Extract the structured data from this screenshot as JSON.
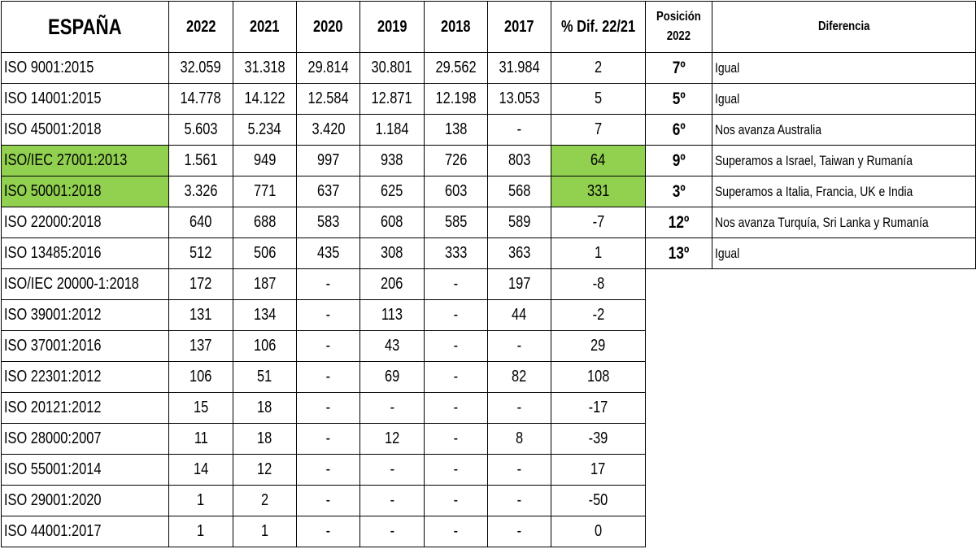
{
  "table": {
    "header": [
      "ESPAÑA",
      "2022",
      "2021",
      "2020",
      "2019",
      "2018",
      "2017",
      "% Dif. 22/21",
      "Posición 2022",
      "Diferencia"
    ],
    "rows": [
      [
        "ISO 9001:2015",
        "32.059",
        "31.318",
        "29.814",
        "30.801",
        "29.562",
        "31.984",
        "2",
        "7º",
        "Igual"
      ],
      [
        "ISO 14001:2015",
        "14.778",
        "14.122",
        "12.584",
        "12.871",
        "12.198",
        "13.053",
        "5",
        "5º",
        "Igual"
      ],
      [
        "ISO 45001:2018",
        "5.603",
        "5.234",
        "3.420",
        "1.184",
        "138",
        "-",
        "7",
        "6º",
        "Nos avanza Australia"
      ],
      [
        "ISO/IEC 27001:2013",
        "1.561",
        "949",
        "997",
        "938",
        "726",
        "803",
        "64",
        "9º",
        "Superamos a Israel, Taiwan y Rumanía"
      ],
      [
        "ISO 50001:2018",
        "3.326",
        "771",
        "637",
        "625",
        "603",
        "568",
        "331",
        "3º",
        "Superamos a Italia, Francia, UK e India"
      ],
      [
        "ISO 22000:2018",
        "640",
        "688",
        "583",
        "608",
        "585",
        "589",
        "-7",
        "12º",
        "Nos avanza Turquía, Sri Lanka y Rumanía"
      ],
      [
        "ISO 13485:2016",
        "512",
        "506",
        "435",
        "308",
        "333",
        "363",
        "1",
        "13º",
        "Igual"
      ],
      [
        "ISO/IEC 20000-1:2018",
        "172",
        "187",
        "-",
        "206",
        "-",
        "197",
        "-8"
      ],
      [
        "ISO 39001:2012",
        "131",
        "134",
        "-",
        "113",
        "-",
        "44",
        "-2"
      ],
      [
        "ISO 37001:2016",
        "137",
        "106",
        "-",
        "43",
        "-",
        "-",
        "29"
      ],
      [
        "ISO 22301:2012",
        "106",
        "51",
        "-",
        "69",
        "-",
        "82",
        "108"
      ],
      [
        "ISO 20121:2012",
        "15",
        "18",
        "-",
        "-",
        "-",
        "-",
        "-17"
      ],
      [
        "ISO 28000:2007",
        "11",
        "18",
        "-",
        "12",
        "-",
        "8",
        "-39"
      ],
      [
        "ISO 55001:2014",
        "14",
        "12",
        "-",
        "-",
        "-",
        "-",
        "17"
      ],
      [
        "ISO 29001:2020",
        "1",
        "2",
        "-",
        "-",
        "-",
        "-",
        "-50"
      ],
      [
        "ISO 44001:2017",
        "1",
        "1",
        "-",
        "-",
        "-",
        "-",
        "0"
      ]
    ]
  }
}
